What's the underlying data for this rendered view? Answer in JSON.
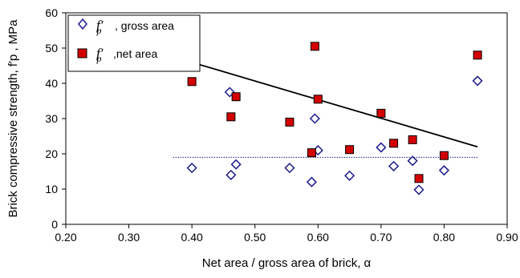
{
  "chart_data": {
    "type": "scatter",
    "title": "",
    "xlabel": "Net area / gross area of brick, α",
    "ylabel": "Brick compressive strength, f′p , MPa",
    "xlim": [
      0.2,
      0.9
    ],
    "ylim": [
      0,
      60
    ],
    "x_ticks": [
      "0.20",
      "0.30",
      "0.40",
      "0.50",
      "0.60",
      "0.70",
      "0.80",
      "0.90"
    ],
    "y_ticks": [
      "0",
      "10",
      "20",
      "30",
      "40",
      "50",
      "60"
    ],
    "grid": false,
    "legend_position": "top-left",
    "legend": [
      {
        "symbol": "f′p",
        "label": ", gross area"
      },
      {
        "symbol": "f′p",
        "label": ",net area"
      }
    ],
    "series": [
      {
        "marker": "open-diamond",
        "color": "#1a1a8c",
        "points": [
          {
            "x": 0.4,
            "y": 16.0
          },
          {
            "x": 0.46,
            "y": 37.5
          },
          {
            "x": 0.462,
            "y": 14.0
          },
          {
            "x": 0.47,
            "y": 17.0
          },
          {
            "x": 0.555,
            "y": 16.0
          },
          {
            "x": 0.59,
            "y": 12.0
          },
          {
            "x": 0.595,
            "y": 30.0
          },
          {
            "x": 0.6,
            "y": 21.0
          },
          {
            "x": 0.65,
            "y": 13.8
          },
          {
            "x": 0.7,
            "y": 21.8
          },
          {
            "x": 0.72,
            "y": 16.5
          },
          {
            "x": 0.75,
            "y": 18.0
          },
          {
            "x": 0.76,
            "y": 9.8
          },
          {
            "x": 0.8,
            "y": 15.3
          },
          {
            "x": 0.853,
            "y": 40.7
          }
        ]
      },
      {
        "marker": "filled-square",
        "color": "#d40000",
        "points": [
          {
            "x": 0.4,
            "y": 40.5
          },
          {
            "x": 0.462,
            "y": 30.5
          },
          {
            "x": 0.47,
            "y": 36.2
          },
          {
            "x": 0.555,
            "y": 29.0
          },
          {
            "x": 0.59,
            "y": 20.3
          },
          {
            "x": 0.595,
            "y": 50.5
          },
          {
            "x": 0.6,
            "y": 35.5
          },
          {
            "x": 0.65,
            "y": 21.2
          },
          {
            "x": 0.7,
            "y": 31.5
          },
          {
            "x": 0.72,
            "y": 23.0
          },
          {
            "x": 0.75,
            "y": 24.0
          },
          {
            "x": 0.76,
            "y": 13.0
          },
          {
            "x": 0.8,
            "y": 19.5
          },
          {
            "x": 0.853,
            "y": 48.0
          }
        ]
      }
    ],
    "lines": [
      {
        "style": "solid",
        "color": "#000000",
        "points": [
          {
            "x": 0.38,
            "y": 47.0
          },
          {
            "x": 0.853,
            "y": 22.0
          }
        ]
      },
      {
        "style": "dotted",
        "color": "#1a1a8c",
        "points": [
          {
            "x": 0.37,
            "y": 19.0
          },
          {
            "x": 0.853,
            "y": 19.0
          }
        ]
      }
    ]
  }
}
